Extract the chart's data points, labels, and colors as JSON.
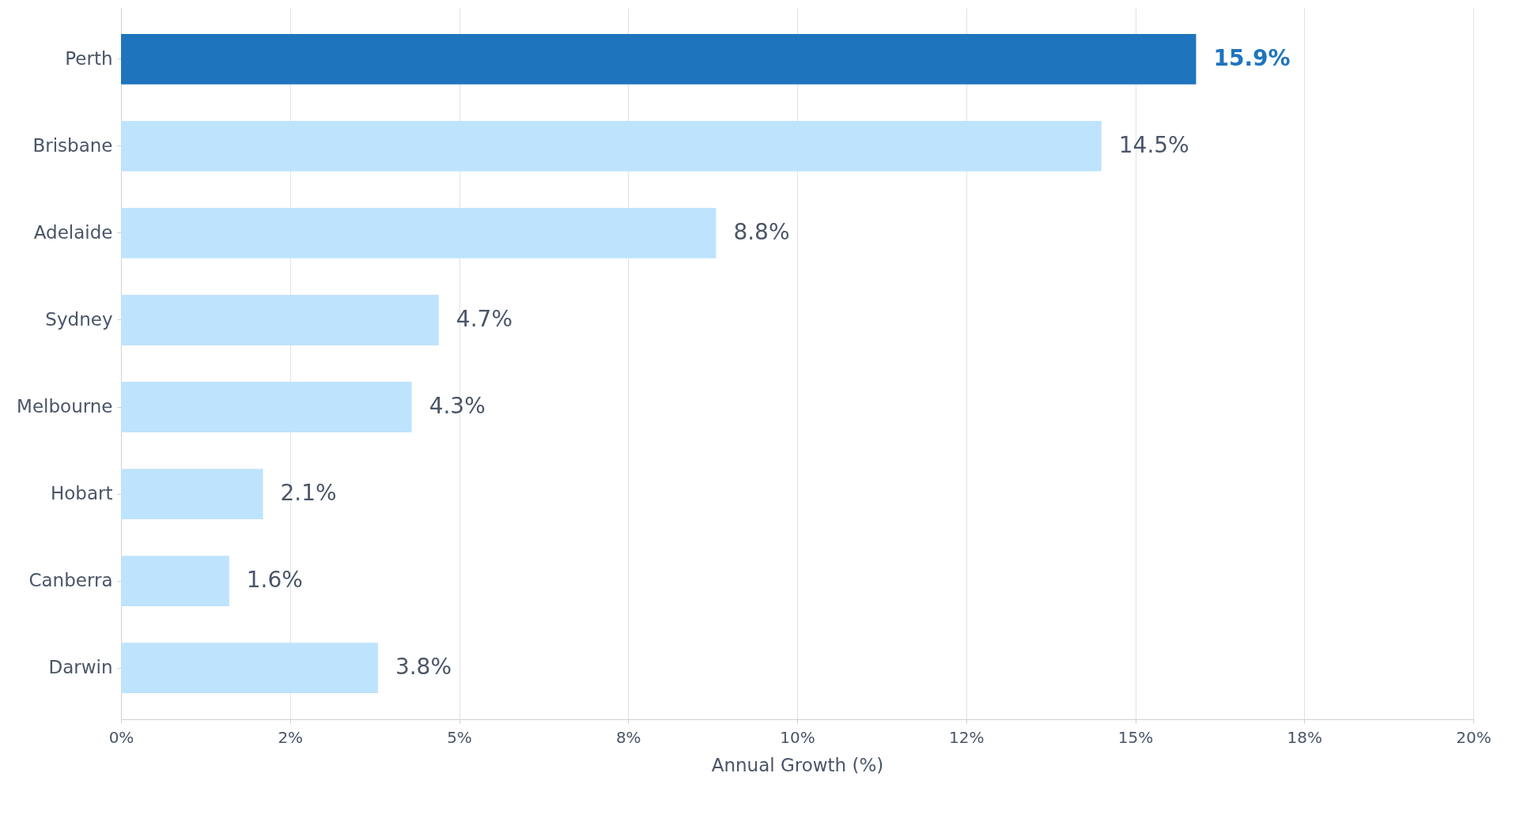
{
  "chart_data": {
    "type": "bar",
    "orientation": "horizontal",
    "xlabel": "Annual Growth (%)",
    "categories": [
      "Perth",
      "Brisbane",
      "Adelaide",
      "Sydney",
      "Melbourne",
      "Hobart",
      "Canberra",
      "Darwin"
    ],
    "values": [
      15.9,
      14.5,
      8.8,
      4.7,
      4.3,
      2.1,
      1.6,
      3.8
    ],
    "colors": [
      "#1f74be",
      "#bee3fd",
      "#bee3fd",
      "#bee3fd",
      "#bee3fd",
      "#bee3fd",
      "#bee3fd",
      "#bee3fd"
    ],
    "value_labels": [
      "15.9%",
      "14.5%",
      "8.8%",
      "4.7%",
      "4.3%",
      "2.1%",
      "1.6%",
      "3.8%"
    ],
    "xlim": [
      0,
      20
    ],
    "xticks": [
      {
        "value": 0,
        "label": "0%"
      },
      {
        "value": 2.5,
        "label": "2%"
      },
      {
        "value": 5,
        "label": "5%"
      },
      {
        "value": 7.5,
        "label": "8%"
      },
      {
        "value": 10,
        "label": "10%"
      },
      {
        "value": 12.5,
        "label": "12%"
      },
      {
        "value": 15,
        "label": "15%"
      },
      {
        "value": 17.5,
        "label": "18%"
      },
      {
        "value": 20,
        "label": "20%"
      }
    ],
    "grid": "x"
  }
}
